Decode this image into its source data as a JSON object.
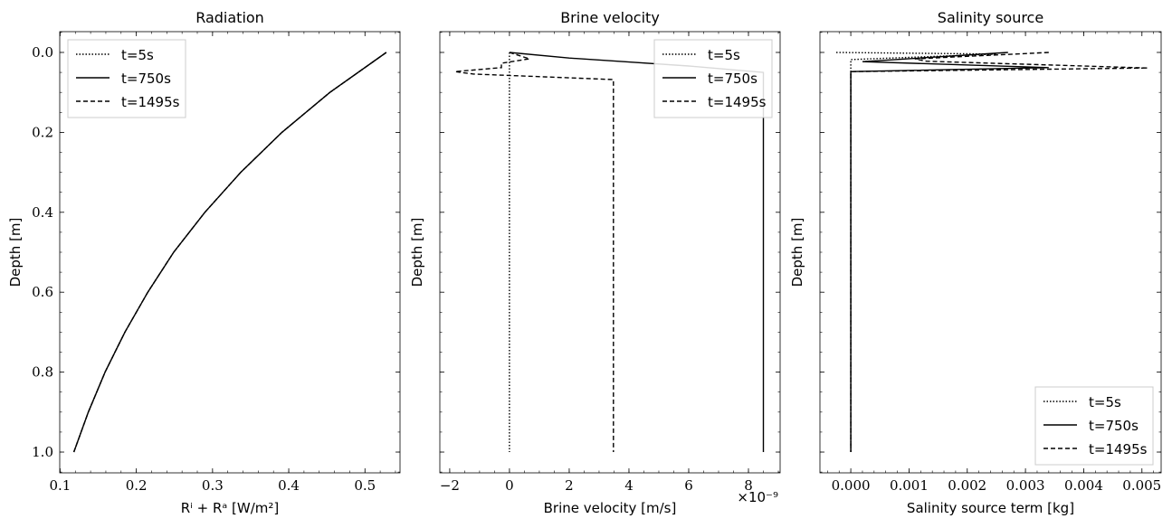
{
  "chart_data": [
    {
      "type": "line",
      "title": "Radiation",
      "xlabel": "Rⁱ + Rᵃ [W/m²]",
      "ylabel": "Depth [m]",
      "xlim": [
        0.0995,
        0.546
      ],
      "ylim": [
        1.052,
        -0.052
      ],
      "xticks": [
        0.1,
        0.2,
        0.3,
        0.4,
        0.5
      ],
      "xtick_labels": [
        "0.1",
        "0.2",
        "0.3",
        "0.4",
        "0.5"
      ],
      "xminor": 0.02,
      "yticks": [
        0.0,
        0.2,
        0.4,
        0.6,
        0.8,
        1.0
      ],
      "ytick_labels": [
        "0.0",
        "0.2",
        "0.4",
        "0.6",
        "0.8",
        "1.0"
      ],
      "yminor": 0.05,
      "legend": "upper-left",
      "legend_entries": [
        "t=5s",
        "t=750s",
        "t=1495s"
      ],
      "series": [
        {
          "name": "t=5s",
          "style": "dotted",
          "x": [
            0.528,
            0.454,
            0.391,
            0.337,
            0.29,
            0.249,
            0.215,
            0.185,
            0.159,
            0.137,
            0.118
          ],
          "y": [
            0,
            0.1,
            0.2,
            0.3,
            0.4,
            0.5,
            0.6,
            0.7,
            0.8,
            0.9,
            1.0
          ]
        },
        {
          "name": "t=750s",
          "style": "solid",
          "x": [
            0.528,
            0.454,
            0.391,
            0.337,
            0.29,
            0.249,
            0.215,
            0.185,
            0.159,
            0.137,
            0.118
          ],
          "y": [
            0,
            0.1,
            0.2,
            0.3,
            0.4,
            0.5,
            0.6,
            0.7,
            0.8,
            0.9,
            1.0
          ]
        },
        {
          "name": "t=1495s",
          "style": "dashed",
          "x": [
            0.528,
            0.454,
            0.391,
            0.337,
            0.29,
            0.249,
            0.215,
            0.185,
            0.159,
            0.137,
            0.118
          ],
          "y": [
            0,
            0.1,
            0.2,
            0.3,
            0.4,
            0.5,
            0.6,
            0.7,
            0.8,
            0.9,
            1.0
          ]
        }
      ]
    },
    {
      "type": "line",
      "title": "Brine velocity",
      "xlabel": "Brine velocity [m/s]",
      "ylabel": "Depth [m]",
      "offset_text": "×10⁻⁹",
      "xlim": [
        -2.33,
        9.06
      ],
      "ylim": [
        1.052,
        -0.052
      ],
      "xticks": [
        -2,
        0,
        2,
        4,
        6,
        8
      ],
      "xtick_labels": [
        "−2",
        "0",
        "2",
        "4",
        "6",
        "8"
      ],
      "xminor": 0.5,
      "yticks": [
        0.0,
        0.2,
        0.4,
        0.6,
        0.8,
        1.0
      ],
      "ytick_labels": [],
      "yminor": 0.05,
      "legend": "upper-right",
      "legend_entries": [
        "t=5s",
        "t=750s",
        "t=1495s"
      ],
      "series": [
        {
          "name": "t=5s",
          "style": "dotted",
          "x": [
            0,
            0
          ],
          "y": [
            0,
            1.0
          ]
        },
        {
          "name": "t=750s",
          "style": "solid",
          "x": [
            0,
            2,
            4,
            6,
            8.5,
            8.5
          ],
          "y": [
            0,
            0.014,
            0.024,
            0.034,
            0.05,
            1.0
          ]
        },
        {
          "name": "t=1495s",
          "style": "dashed",
          "x": [
            0,
            0.67,
            -0.27,
            -0.27,
            -1.82,
            -1.2,
            3.48,
            3.48
          ],
          "y": [
            0,
            0.016,
            0.027,
            0.038,
            0.048,
            0.054,
            0.068,
            1.0
          ]
        }
      ]
    },
    {
      "type": "line",
      "title": "Salinity source",
      "xlabel": "Salinity source term [kg]",
      "ylabel": "Depth [m]",
      "xlim": [
        -0.00053,
        0.00533
      ],
      "ylim": [
        1.052,
        -0.052
      ],
      "xticks": [
        0,
        0.001,
        0.002,
        0.003,
        0.004,
        0.005
      ],
      "xtick_labels": [
        "0.000",
        "0.001",
        "0.002",
        "0.003",
        "0.004",
        "0.005"
      ],
      "xminor": 0.0002,
      "yticks": [
        0.0,
        0.2,
        0.4,
        0.6,
        0.8,
        1.0
      ],
      "ytick_labels": [],
      "yminor": 0.05,
      "legend": "lower-right",
      "legend_entries": [
        "t=5s",
        "t=750s",
        "t=1495s"
      ],
      "series": [
        {
          "name": "t=5s",
          "style": "dotted",
          "x": [
            -0.00025,
            0.0025,
            0.0,
            0.0,
            0.0
          ],
          "y": [
            0,
            0.004,
            0.018,
            0.045,
            1.0
          ]
        },
        {
          "name": "t=750s",
          "style": "solid",
          "x": [
            0.0027,
            0.0002,
            0.0034,
            0.0,
            0.0
          ],
          "y": [
            0.0,
            0.023,
            0.038,
            0.048,
            1.0
          ]
        },
        {
          "name": "t=1495s",
          "style": "dashed",
          "x": [
            0.0034,
            0.0011,
            0.0013,
            0.0051,
            0.0,
            0.0
          ],
          "y": [
            0.0,
            0.016,
            0.022,
            0.039,
            0.048,
            1.0
          ]
        }
      ]
    }
  ]
}
